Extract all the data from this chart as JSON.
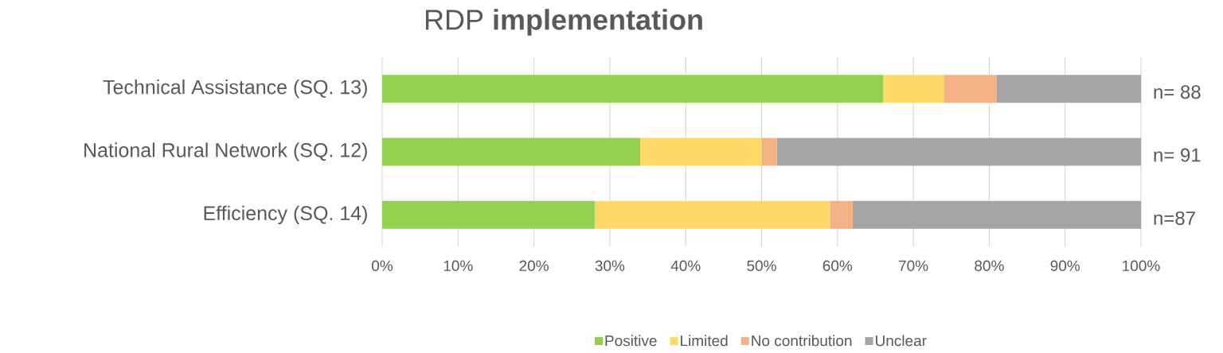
{
  "chart_data": {
    "type": "bar",
    "orientation": "horizontal",
    "stacked": true,
    "title": "RDP **implementation**",
    "categories": [
      "Technical Assistance (SQ. 13)",
      "National Rural Network (SQ. 12)",
      "Efficiency (SQ. 14)"
    ],
    "series": [
      {
        "name": "Positive",
        "color": "#92d050",
        "values": [
          66,
          34,
          28
        ]
      },
      {
        "name": "Limited",
        "color": "#ffd966",
        "values": [
          8,
          16,
          31
        ]
      },
      {
        "name": "No contribution",
        "color": "#f4b183",
        "values": [
          7,
          2,
          3
        ]
      },
      {
        "name": "Unclear",
        "color": "#a5a5a5",
        "values": [
          19,
          48,
          38
        ]
      }
    ],
    "xlim": [
      0,
      100
    ],
    "xticks": [
      {
        "value": 0,
        "label": "0%"
      },
      {
        "value": 10,
        "label": "10%"
      },
      {
        "value": 20,
        "label": "20%"
      },
      {
        "value": 30,
        "label": "30%"
      },
      {
        "value": 40,
        "label": "40%"
      },
      {
        "value": 50,
        "label": "50%"
      },
      {
        "value": 60,
        "label": "60%"
      },
      {
        "value": 70,
        "label": "70%"
      },
      {
        "value": 80,
        "label": "80%"
      },
      {
        "value": 90,
        "label": "90%"
      },
      {
        "value": 100,
        "label": "100%"
      }
    ],
    "annotations": [
      "n= 88",
      "n= 91",
      "n=87"
    ],
    "grid": "x",
    "legend": "bottom"
  }
}
